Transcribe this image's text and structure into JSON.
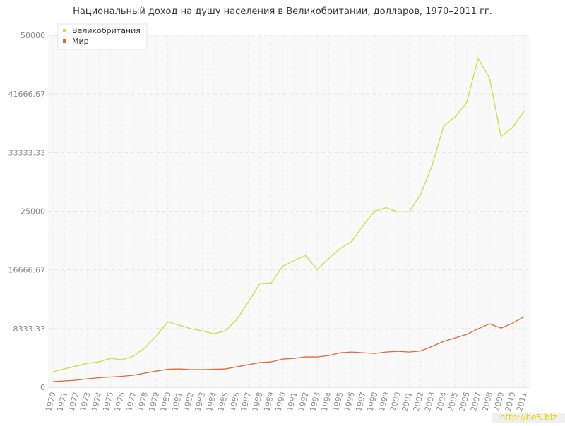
{
  "chart_data": {
    "type": "line",
    "title": "Национальный доход на душу населения в Великобритании, долларов, 1970–2011 гг.",
    "categories": [
      "1970",
      "1971",
      "1972",
      "1973",
      "1974",
      "1975",
      "1976",
      "1977",
      "1978",
      "1979",
      "1980",
      "1981",
      "1982",
      "1983",
      "1984",
      "1985",
      "1986",
      "1987",
      "1988",
      "1989",
      "1990",
      "1991",
      "1992",
      "1993",
      "1994",
      "1995",
      "1996",
      "1997",
      "1998",
      "1999",
      "2000",
      "2001",
      "2002",
      "2003",
      "2004",
      "2005",
      "2006",
      "2007",
      "2008",
      "2009",
      "2010",
      "2011"
    ],
    "series": [
      {
        "name": "Великобритания",
        "color": "#c6dd4a",
        "values": [
          2200,
          2600,
          3000,
          3400,
          3600,
          4100,
          3900,
          4400,
          5600,
          7300,
          9300,
          8800,
          8300,
          8000,
          7600,
          8000,
          9600,
          12100,
          14700,
          14800,
          17200,
          18000,
          18700,
          16700,
          18300,
          19700,
          20700,
          23000,
          25000,
          25500,
          24900,
          24900,
          27400,
          31500,
          37100,
          38400,
          40400,
          46700,
          43900,
          35600,
          36900,
          39200
        ]
      },
      {
        "name": "Мир",
        "color": "#e0693a",
        "values": [
          800,
          900,
          1000,
          1200,
          1350,
          1450,
          1550,
          1700,
          2000,
          2300,
          2550,
          2600,
          2500,
          2500,
          2550,
          2600,
          2900,
          3200,
          3500,
          3600,
          4000,
          4100,
          4300,
          4300,
          4500,
          4900,
          5000,
          4900,
          4800,
          5000,
          5100,
          5000,
          5150,
          5800,
          6500,
          7000,
          7500,
          8300,
          9000,
          8400,
          9100,
          10000
        ]
      }
    ],
    "ylim": [
      0,
      50000
    ],
    "yticks": [
      0,
      8333.33,
      16666.67,
      25000,
      33333.33,
      41666.67,
      50000
    ],
    "grid": true,
    "legend": "top-left",
    "watermark": "http://be5.biz"
  }
}
